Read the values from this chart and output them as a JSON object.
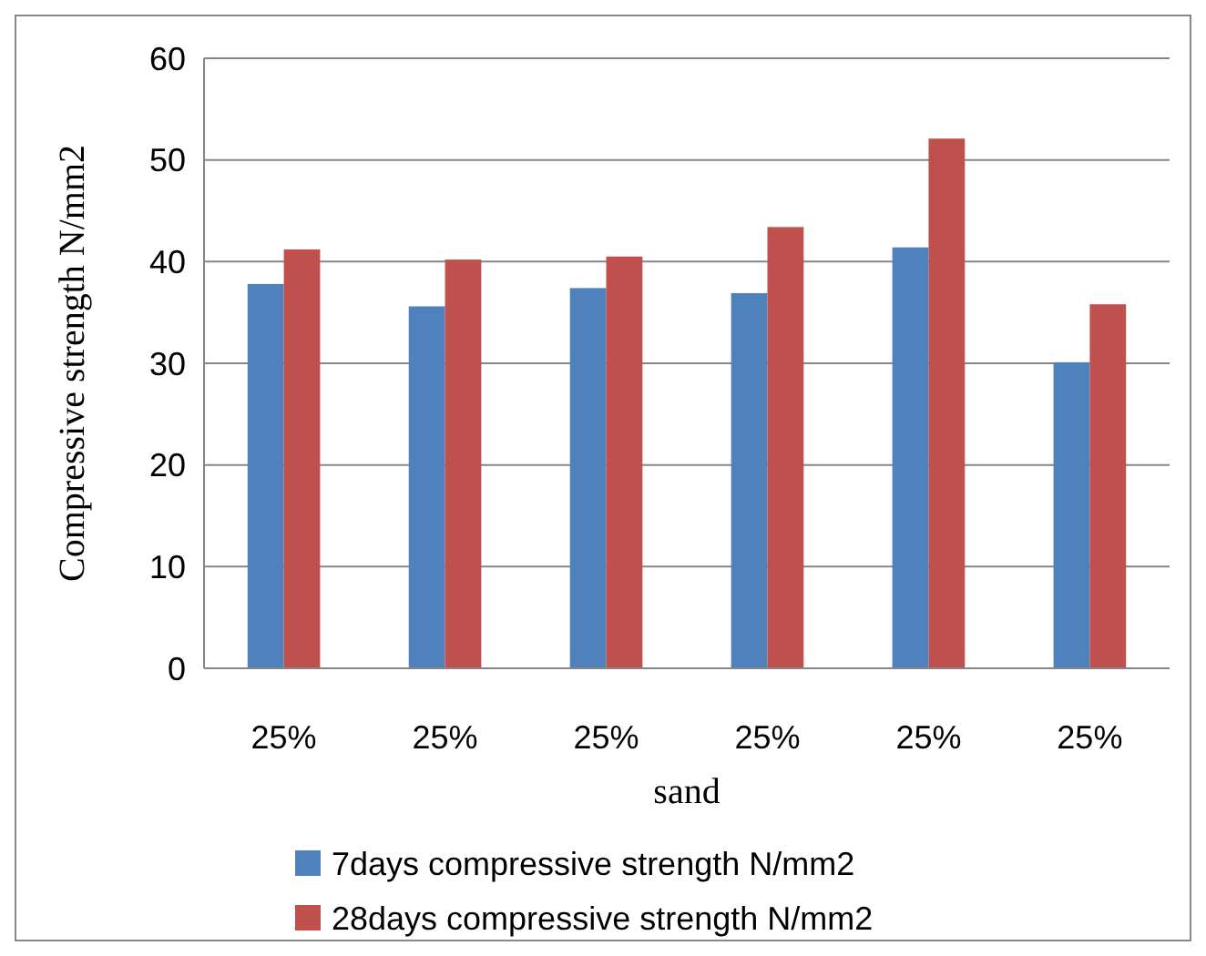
{
  "chart_data": {
    "type": "bar",
    "xlabel": "sand",
    "ylabel": "Compressive strength N/mm2",
    "categories": [
      "25%",
      "25%",
      "25%",
      "25%",
      "25%",
      "25%"
    ],
    "series": [
      {
        "name": "7days compressive strength N/mm2",
        "color": "#4f81bd",
        "values": [
          37.8,
          35.6,
          37.4,
          36.9,
          41.4,
          30.1
        ]
      },
      {
        "name": "28days compressive strength N/mm2",
        "color": "#c0504d",
        "values": [
          41.2,
          40.2,
          40.5,
          43.4,
          52.1,
          35.8
        ]
      }
    ],
    "ylim": [
      0,
      60
    ],
    "yticks": [
      0,
      10,
      20,
      30,
      40,
      50,
      60
    ],
    "grid": "y",
    "legend": "bottom"
  }
}
